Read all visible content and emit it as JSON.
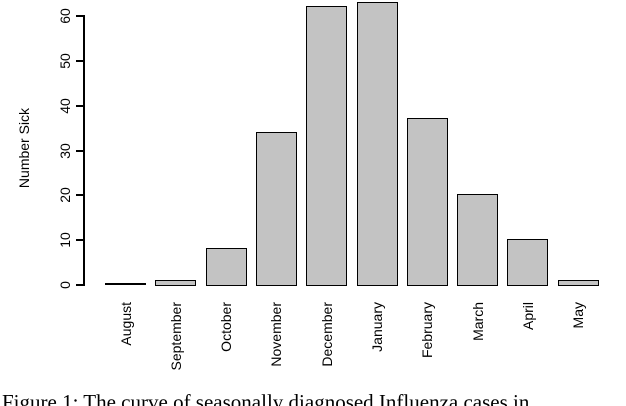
{
  "chart_data": {
    "type": "bar",
    "categories": [
      "August",
      "September",
      "October",
      "November",
      "December",
      "January",
      "February",
      "March",
      "April",
      "May"
    ],
    "values": [
      0,
      1,
      8,
      34,
      62,
      63,
      37,
      20,
      10,
      1
    ],
    "title": "",
    "xlabel": "",
    "ylabel": "Number Sick",
    "yticks": [
      0,
      10,
      20,
      30,
      40,
      50,
      60
    ],
    "ylim": [
      0,
      63
    ],
    "grid": false,
    "legend": null,
    "bar_fill": "#c3c3c3",
    "bar_border": "#000000",
    "axis_color": "#000000"
  },
  "caption": {
    "text": "Figure 1: The curve of seasonally diagnosed Influenza cases in"
  }
}
